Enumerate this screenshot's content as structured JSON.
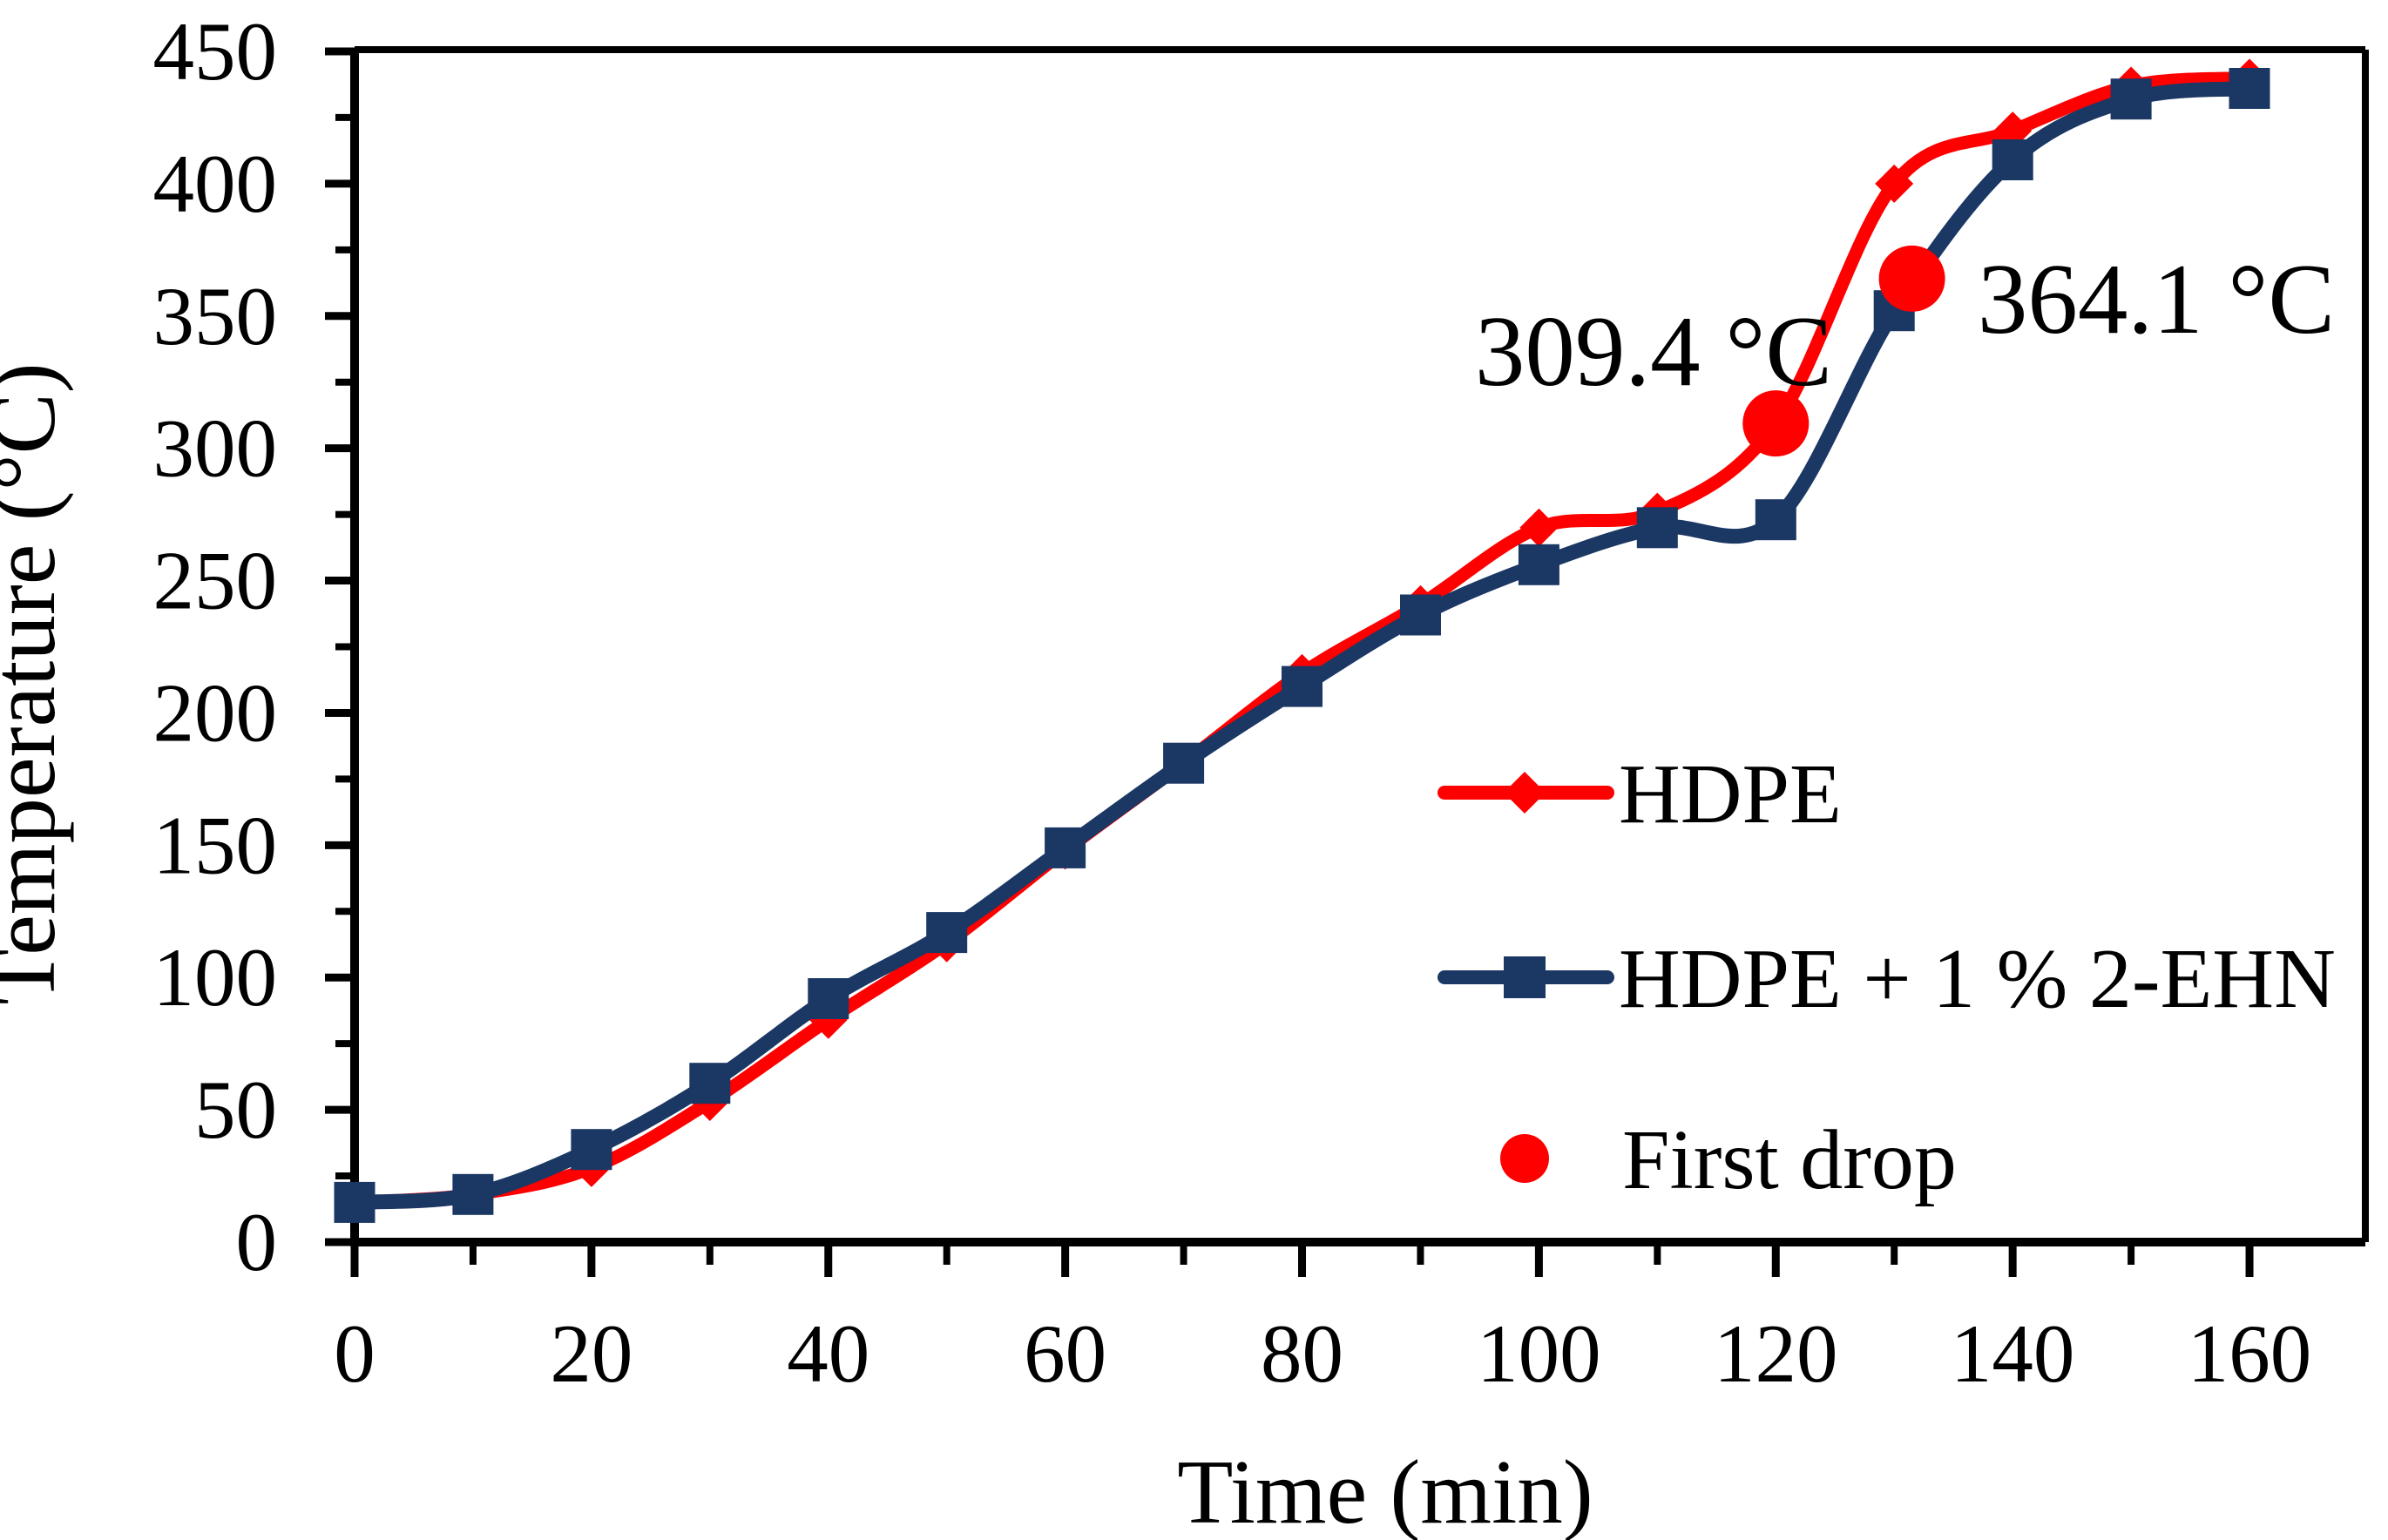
{
  "figure": {
    "background": "#FFFFFF",
    "text_color": "#000000",
    "frame_color": "#000000"
  },
  "chart_data": {
    "type": "line",
    "title": "",
    "xlabel": "Time (min)",
    "ylabel": "Temperature (°C)",
    "xlim": [
      0,
      168
    ],
    "ylim": [
      0,
      450
    ],
    "grid": false,
    "x_major_ticks": [
      0,
      20,
      40,
      60,
      80,
      100,
      120,
      140,
      160
    ],
    "x_minor_step": 10,
    "x_minor_max": 160,
    "y_major_ticks": [
      0,
      50,
      100,
      150,
      200,
      250,
      300,
      350,
      400,
      450
    ],
    "y_minor_step": 25,
    "y_minor_max": 450,
    "x": [
      0,
      10,
      20,
      30,
      40,
      50,
      60,
      70,
      80,
      90,
      100,
      110,
      120,
      130,
      140,
      150,
      160
    ],
    "series": [
      {
        "name": "HDPE",
        "color": "#FE0000",
        "marker": "diamond",
        "smooth": true,
        "values": [
          15,
          18,
          28,
          53,
          84,
          113,
          148,
          181,
          215,
          241,
          270,
          276,
          309.4,
          400,
          420,
          437,
          440
        ]
      },
      {
        "name": "HDPE + 1 % 2-EHN",
        "color": "#1B3764",
        "marker": "square",
        "smooth": true,
        "values": [
          15,
          18,
          35,
          60,
          92,
          117,
          149,
          181,
          210,
          237,
          256,
          270,
          273,
          352,
          409,
          432,
          436
        ]
      }
    ],
    "annotations": [
      {
        "label": "309.4 °C",
        "x": 120,
        "y": 309.4,
        "marker": "circle",
        "marker_color": "#FE0000",
        "on_series": "HDPE"
      },
      {
        "label": "364.1 °C",
        "x": 131.5,
        "y": 364.1,
        "marker": "circle",
        "marker_color": "#FE0000",
        "on_series": "HDPE + 1 % 2-EHN"
      }
    ],
    "legend": [
      {
        "label": "HDPE",
        "swatch": "line-diamond",
        "color": "#FE0000"
      },
      {
        "label": "HDPE + 1 % 2-EHN",
        "swatch": "line-square",
        "color": "#1B3764"
      },
      {
        "label": "First drop",
        "swatch": "circle",
        "color": "#FE0000"
      }
    ],
    "legend_position": "inside-right"
  }
}
